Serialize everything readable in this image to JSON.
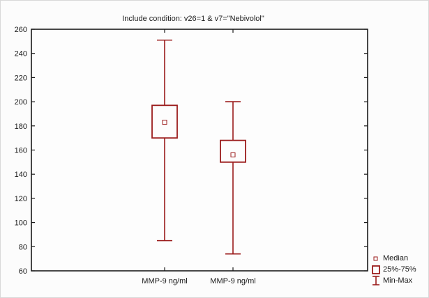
{
  "chart_data": {
    "type": "boxplot",
    "title": "Include condition: v26=1 & v7=\"Nebivolol\"",
    "categories": [
      "MMP-9 ng/ml",
      "MMP-9 ng/ml"
    ],
    "boxes": [
      {
        "min": 85,
        "q1": 170,
        "median": 183,
        "q3": 197,
        "max": 251
      },
      {
        "min": 74,
        "q1": 150,
        "median": 156,
        "q3": 168,
        "max": 200
      }
    ],
    "ylim": [
      60,
      260
    ],
    "yticks": [
      60,
      80,
      100,
      120,
      140,
      160,
      180,
      200,
      220,
      240,
      260
    ],
    "legend": [
      "Median",
      "25%-75%",
      "Min-Max"
    ],
    "legend_position": "bottom-right",
    "color": "#9b1c1c",
    "grid": false
  }
}
